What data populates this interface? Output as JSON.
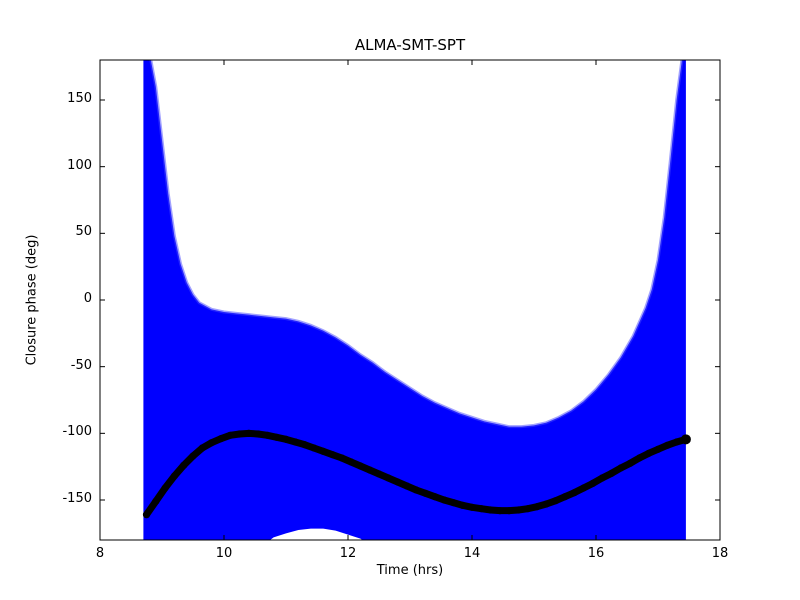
{
  "chart_data": {
    "type": "scatter",
    "title": "ALMA-SMT-SPT",
    "xlabel": "Time (hrs)",
    "ylabel": "Closure phase (deg)",
    "xlim": [
      8,
      18
    ],
    "ylim": [
      -180,
      180
    ],
    "xticks": [
      8,
      10,
      12,
      14,
      16,
      18
    ],
    "yticks": [
      -150,
      -100,
      -50,
      0,
      50,
      100,
      150
    ],
    "grid": false,
    "legend": "none",
    "colors": {
      "errorbar": "#0000ff",
      "errorbar_fringe": "rgba(70,70,255,0.5)",
      "curve": "#000000",
      "frame": "#000000",
      "background": "#ffffff"
    },
    "series": [
      {
        "name": "errorbar-envelope",
        "x": [
          8.7,
          8.8,
          8.9,
          9.0,
          9.1,
          9.2,
          9.3,
          9.4,
          9.5,
          9.6,
          9.8,
          10.0,
          10.2,
          10.4,
          10.6,
          10.8,
          11.0,
          11.2,
          11.4,
          11.6,
          11.8,
          12.0,
          12.2,
          12.4,
          12.6,
          12.8,
          13.0,
          13.2,
          13.4,
          13.6,
          13.8,
          14.0,
          14.2,
          14.4,
          14.6,
          14.8,
          15.0,
          15.2,
          15.4,
          15.6,
          15.8,
          16.0,
          16.2,
          16.4,
          16.6,
          16.8,
          16.9,
          17.0,
          17.1,
          17.2,
          17.3,
          17.4,
          17.45
        ],
        "upper": [
          185,
          185,
          160,
          120,
          80,
          48,
          27,
          13,
          4,
          -2,
          -7,
          -9,
          -10,
          -11,
          -12,
          -13,
          -14,
          -16,
          -19,
          -23,
          -28,
          -34,
          -41,
          -47,
          -54,
          -60,
          -66,
          -72,
          -77,
          -81,
          -85,
          -88,
          -91,
          -93,
          -95,
          -95,
          -94,
          -92,
          -88,
          -83,
          -76,
          -67,
          -56,
          -43,
          -27,
          -6,
          8,
          30,
          62,
          105,
          150,
          185,
          185
        ],
        "lower": [
          -185,
          -185,
          -185,
          -185,
          -185,
          -185,
          -185,
          -185,
          -185,
          -185,
          -185,
          -185,
          -185,
          -185,
          -185,
          -178,
          -175,
          -172.5,
          -171.5,
          -171.5,
          -173,
          -176,
          -179,
          -185,
          -185,
          -185,
          -185,
          -185,
          -185,
          -185,
          -185,
          -185,
          -185,
          -185,
          -185,
          -185,
          -185,
          -185,
          -185,
          -185,
          -185,
          -185,
          -185,
          -185,
          -185,
          -185,
          -185,
          -185,
          -185,
          -185,
          -185,
          -185,
          -185
        ]
      },
      {
        "name": "closure-phase-curve",
        "x": [
          8.75,
          8.9,
          9.05,
          9.2,
          9.35,
          9.5,
          9.65,
          9.8,
          9.95,
          10.1,
          10.25,
          10.4,
          10.55,
          10.7,
          10.85,
          11.0,
          11.15,
          11.3,
          11.45,
          11.6,
          11.75,
          11.9,
          12.05,
          12.2,
          12.35,
          12.5,
          12.65,
          12.8,
          12.95,
          13.1,
          13.25,
          13.4,
          13.55,
          13.7,
          13.85,
          14.0,
          14.15,
          14.3,
          14.45,
          14.6,
          14.75,
          14.9,
          15.05,
          15.2,
          15.35,
          15.5,
          15.65,
          15.8,
          15.95,
          16.1,
          16.25,
          16.4,
          16.55,
          16.7,
          16.85,
          17.0,
          17.15,
          17.3,
          17.45
        ],
        "y": [
          -161,
          -151,
          -141,
          -132,
          -124,
          -117,
          -111,
          -107,
          -104,
          -101.5,
          -100.5,
          -100,
          -100.5,
          -101.5,
          -103,
          -104.5,
          -106.5,
          -108.5,
          -111,
          -113.5,
          -116,
          -118.5,
          -121.5,
          -124.5,
          -127.5,
          -130.5,
          -133.5,
          -136.5,
          -139.5,
          -142.5,
          -145,
          -147.5,
          -150,
          -152,
          -154,
          -155.5,
          -156.5,
          -157.5,
          -158,
          -158,
          -157.5,
          -156.5,
          -155,
          -153,
          -150.5,
          -147.5,
          -144.5,
          -141,
          -137.5,
          -133.5,
          -130,
          -126,
          -122.5,
          -118.5,
          -115,
          -112,
          -109,
          -106.5,
          -104.5
        ]
      }
    ]
  }
}
